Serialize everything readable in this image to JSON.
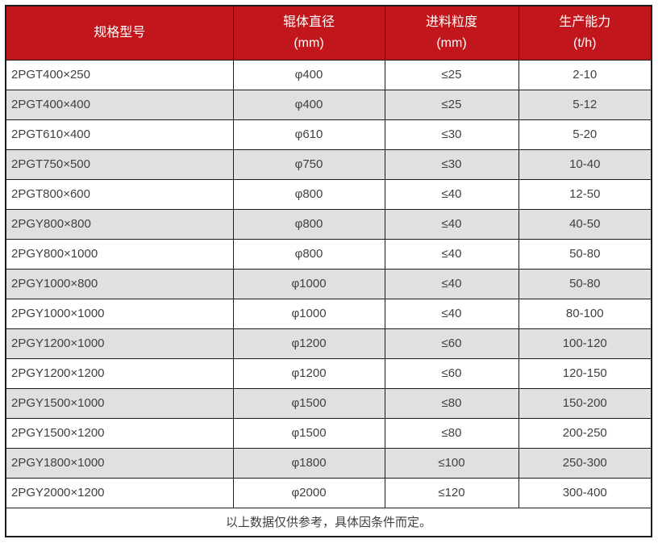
{
  "table": {
    "columns": [
      {
        "line1": "规格型号",
        "line2": ""
      },
      {
        "line1": "辊体直径",
        "line2": "(mm)"
      },
      {
        "line1": "进料粒度",
        "line2": "(mm)"
      },
      {
        "line1": "生产能力",
        "line2": "(t/h)"
      }
    ],
    "rows": [
      [
        "2PGT400×250",
        "φ400",
        "≤25",
        "2-10"
      ],
      [
        "2PGT400×400",
        "φ400",
        "≤25",
        "5-12"
      ],
      [
        "2PGT610×400",
        "φ610",
        "≤30",
        "5-20"
      ],
      [
        "2PGT750×500",
        "φ750",
        "≤30",
        "10-40"
      ],
      [
        "2PGT800×600",
        "φ800",
        "≤40",
        "12-50"
      ],
      [
        "2PGY800×800",
        "φ800",
        "≤40",
        "40-50"
      ],
      [
        "2PGY800×1000",
        "φ800",
        "≤40",
        "50-80"
      ],
      [
        "2PGY1000×800",
        "φ1000",
        "≤40",
        "50-80"
      ],
      [
        "2PGY1000×1000",
        "φ1000",
        "≤40",
        "80-100"
      ],
      [
        "2PGY1200×1000",
        "φ1200",
        "≤60",
        "100-120"
      ],
      [
        "2PGY1200×1200",
        "φ1200",
        "≤60",
        "120-150"
      ],
      [
        "2PGY1500×1000",
        "φ1500",
        "≤80",
        "150-200"
      ],
      [
        "2PGY1500×1200",
        "φ1500",
        "≤80",
        "200-250"
      ],
      [
        "2PGY1800×1000",
        "φ1800",
        "≤100",
        "250-300"
      ],
      [
        "2PGY2000×1200",
        "φ2000",
        "≤120",
        "300-400"
      ]
    ],
    "footnote": "以上数据仅供参考，具体因条件而定。"
  },
  "colors": {
    "header_bg": "#c1161b",
    "header_text": "#ffffff",
    "row_bg": "#ffffff",
    "row_alt_bg": "#e0e0e0",
    "border": "#1a1a1a",
    "text": "#404040"
  }
}
